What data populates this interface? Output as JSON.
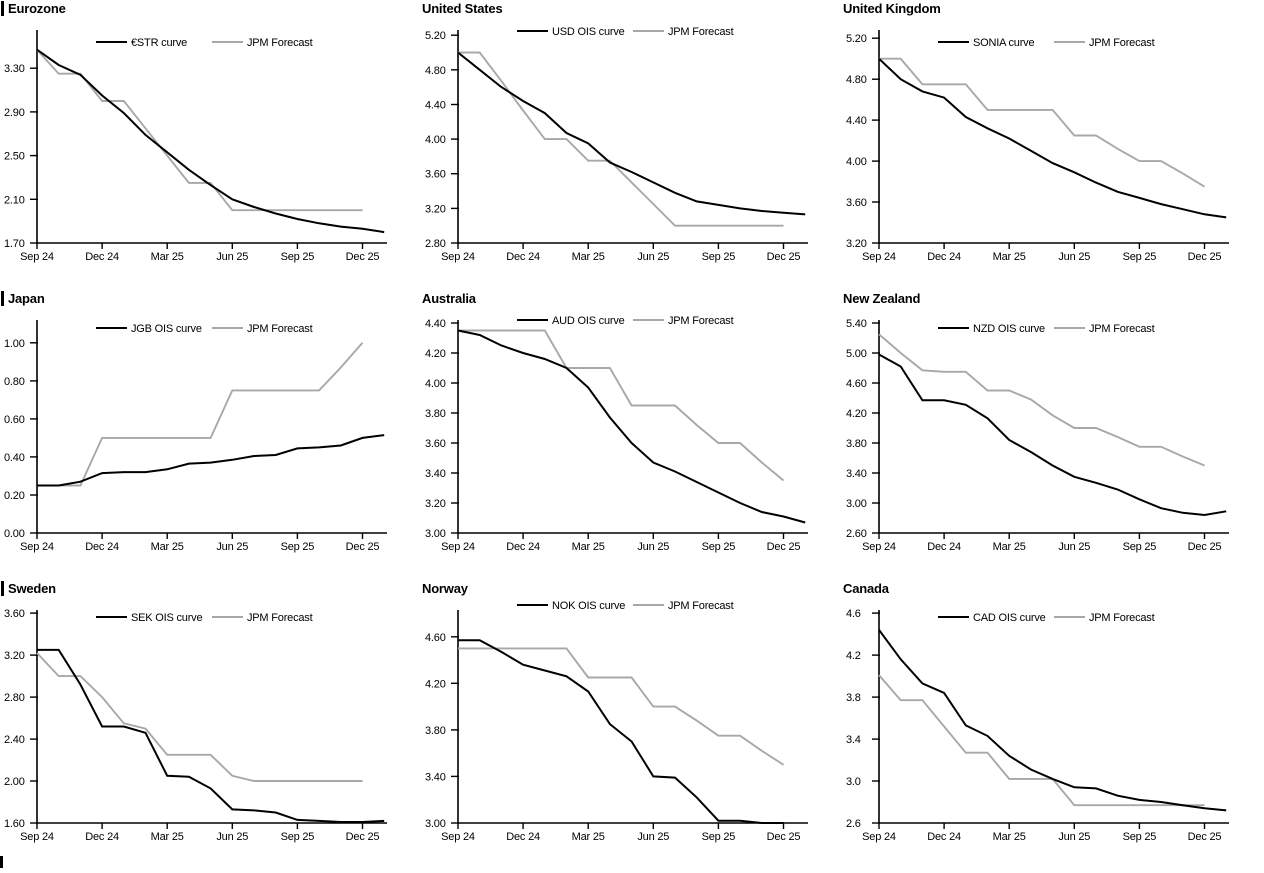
{
  "colors": {
    "curve": "#000000",
    "forecast": "#a8a8a8",
    "text": "#000000"
  },
  "x_axis": {
    "tick_labels": [
      "Sep 24",
      "Dec 24",
      "Mar 25",
      "Jun 25",
      "Sep 25",
      "Dec 25"
    ],
    "tick_positions_months": [
      0,
      3,
      6,
      9,
      12,
      15
    ],
    "x_unit": "months from Sep 2024, monthly points"
  },
  "chart_data": [
    {
      "type": "line",
      "title": "Eurozone",
      "section_bar": true,
      "y_axis": {
        "tick_labels": [
          "1.70",
          "2.10",
          "2.50",
          "2.90",
          "3.30"
        ],
        "tick_values": [
          1.7,
          2.1,
          2.5,
          2.9,
          3.3
        ],
        "range": [
          1.7,
          3.65
        ]
      },
      "series": [
        {
          "name": "€STR curve",
          "role": "curve",
          "y": [
            3.47,
            3.33,
            3.24,
            3.05,
            2.89,
            2.69,
            2.53,
            2.37,
            2.23,
            2.1,
            2.03,
            1.97,
            1.92,
            1.88,
            1.85,
            1.83,
            1.8
          ]
        },
        {
          "name": "JPM Forecast",
          "role": "forecast",
          "y": [
            3.47,
            3.25,
            3.25,
            3.0,
            3.0,
            2.75,
            2.5,
            2.25,
            2.25,
            2.0,
            2.0,
            2.0,
            2.0,
            2.0,
            2.0,
            2.0
          ]
        }
      ]
    },
    {
      "type": "line",
      "title": "United States",
      "section_bar": false,
      "y_axis": {
        "tick_labels": [
          "2.80",
          "3.20",
          "3.60",
          "4.00",
          "4.40",
          "4.80",
          "5.20"
        ],
        "tick_values": [
          2.8,
          3.2,
          3.6,
          4.0,
          4.4,
          4.8,
          5.2
        ],
        "range": [
          2.8,
          5.26
        ]
      },
      "series": [
        {
          "name": "USD OIS curve",
          "role": "curve",
          "y": [
            5.0,
            4.8,
            4.6,
            4.44,
            4.3,
            4.07,
            3.95,
            3.73,
            3.62,
            3.5,
            3.38,
            3.28,
            3.24,
            3.2,
            3.17,
            3.15,
            3.13
          ]
        },
        {
          "name": "JPM Forecast",
          "role": "forecast",
          "y": [
            5.0,
            5.0,
            4.67,
            4.33,
            4.0,
            4.0,
            3.75,
            3.75,
            3.5,
            3.25,
            3.0,
            3.0,
            3.0,
            3.0,
            3.0,
            3.0
          ]
        }
      ]
    },
    {
      "type": "line",
      "title": "United Kingdom",
      "section_bar": false,
      "y_axis": {
        "tick_labels": [
          "3.20",
          "3.60",
          "4.00",
          "4.40",
          "4.80",
          "5.20"
        ],
        "tick_values": [
          3.2,
          3.6,
          4.0,
          4.4,
          4.8,
          5.2
        ],
        "range": [
          3.2,
          5.28
        ]
      },
      "series": [
        {
          "name": "SONIA curve",
          "role": "curve",
          "y": [
            5.0,
            4.8,
            4.68,
            4.62,
            4.43,
            4.32,
            4.22,
            4.1,
            3.98,
            3.89,
            3.79,
            3.7,
            3.64,
            3.58,
            3.53,
            3.48,
            3.45
          ]
        },
        {
          "name": "JPM Forecast",
          "role": "forecast",
          "y": [
            5.0,
            5.0,
            4.75,
            4.75,
            4.75,
            4.5,
            4.5,
            4.5,
            4.5,
            4.25,
            4.25,
            4.12,
            4.0,
            4.0,
            3.88,
            3.75
          ]
        }
      ]
    },
    {
      "type": "line",
      "title": "Japan",
      "section_bar": true,
      "y_axis": {
        "tick_labels": [
          "0.00",
          "0.20",
          "0.40",
          "0.60",
          "0.80",
          "1.00"
        ],
        "tick_values": [
          0.0,
          0.2,
          0.4,
          0.6,
          0.8,
          1.0
        ],
        "range": [
          0.0,
          1.12
        ]
      },
      "series": [
        {
          "name": "JGB OIS curve",
          "role": "curve",
          "y": [
            0.25,
            0.25,
            0.27,
            0.315,
            0.32,
            0.32,
            0.335,
            0.365,
            0.37,
            0.385,
            0.405,
            0.41,
            0.445,
            0.45,
            0.46,
            0.5,
            0.515
          ]
        },
        {
          "name": "JPM Forecast",
          "role": "forecast",
          "y": [
            0.25,
            0.25,
            0.25,
            0.5,
            0.5,
            0.5,
            0.5,
            0.5,
            0.5,
            0.75,
            0.75,
            0.75,
            0.75,
            0.75,
            0.87,
            1.0
          ]
        }
      ]
    },
    {
      "type": "line",
      "title": "Australia",
      "section_bar": false,
      "y_axis": {
        "tick_labels": [
          "3.00",
          "3.20",
          "3.40",
          "3.60",
          "3.80",
          "4.00",
          "4.20",
          "4.40"
        ],
        "tick_values": [
          3.0,
          3.2,
          3.4,
          3.6,
          3.8,
          4.0,
          4.2,
          4.4
        ],
        "range": [
          3.0,
          4.42
        ]
      },
      "series": [
        {
          "name": "AUD OIS curve",
          "role": "curve",
          "y": [
            4.35,
            4.32,
            4.25,
            4.2,
            4.16,
            4.1,
            3.97,
            3.77,
            3.6,
            3.47,
            3.41,
            3.34,
            3.27,
            3.2,
            3.14,
            3.11,
            3.07
          ]
        },
        {
          "name": "JPM Forecast",
          "role": "forecast",
          "y": [
            4.35,
            4.35,
            4.35,
            4.35,
            4.35,
            4.1,
            4.1,
            4.1,
            3.85,
            3.85,
            3.85,
            3.72,
            3.6,
            3.6,
            3.47,
            3.35
          ]
        }
      ]
    },
    {
      "type": "line",
      "title": "New Zealand",
      "section_bar": false,
      "y_axis": {
        "tick_labels": [
          "2.60",
          "3.00",
          "3.40",
          "3.80",
          "4.20",
          "4.60",
          "5.00",
          "5.40"
        ],
        "tick_values": [
          2.6,
          3.0,
          3.4,
          3.8,
          4.2,
          4.6,
          5.0,
          5.4
        ],
        "range": [
          2.6,
          5.44
        ]
      },
      "series": [
        {
          "name": "NZD OIS curve",
          "role": "curve",
          "y": [
            4.98,
            4.82,
            4.37,
            4.37,
            4.31,
            4.13,
            3.84,
            3.68,
            3.5,
            3.35,
            3.27,
            3.18,
            3.05,
            2.93,
            2.87,
            2.84,
            2.89
          ]
        },
        {
          "name": "JPM Forecast",
          "role": "forecast",
          "y": [
            5.25,
            5.0,
            4.77,
            4.75,
            4.75,
            4.5,
            4.5,
            4.38,
            4.17,
            4.0,
            4.0,
            3.88,
            3.75,
            3.75,
            3.62,
            3.5
          ]
        }
      ]
    },
    {
      "type": "line",
      "title": "Sweden",
      "section_bar": true,
      "y_axis": {
        "tick_labels": [
          "1.60",
          "2.00",
          "2.40",
          "2.80",
          "3.20",
          "3.60"
        ],
        "tick_values": [
          1.6,
          2.0,
          2.4,
          2.8,
          3.2,
          3.6
        ],
        "range": [
          1.6,
          3.63
        ]
      },
      "series": [
        {
          "name": "SEK OIS curve",
          "role": "curve",
          "y": [
            3.25,
            3.25,
            2.92,
            2.52,
            2.52,
            2.46,
            2.05,
            2.04,
            1.93,
            1.73,
            1.72,
            1.7,
            1.63,
            1.62,
            1.61,
            1.61,
            1.62
          ]
        },
        {
          "name": "JPM Forecast",
          "role": "forecast",
          "y": [
            3.22,
            3.0,
            3.0,
            2.8,
            2.55,
            2.5,
            2.25,
            2.25,
            2.25,
            2.05,
            2.0,
            2.0,
            2.0,
            2.0,
            2.0,
            2.0
          ]
        }
      ]
    },
    {
      "type": "line",
      "title": "Norway",
      "section_bar": false,
      "y_axis": {
        "tick_labels": [
          "3.00",
          "3.40",
          "3.80",
          "4.20",
          "4.60"
        ],
        "tick_values": [
          3.0,
          3.4,
          3.8,
          4.2,
          4.6
        ],
        "range": [
          3.0,
          4.83
        ]
      },
      "series": [
        {
          "name": "NOK OIS curve",
          "role": "curve",
          "y": [
            4.57,
            4.57,
            4.47,
            4.36,
            4.31,
            4.26,
            4.13,
            3.85,
            3.7,
            3.4,
            3.39,
            3.22,
            3.02,
            3.02,
            3.0,
            3.0
          ]
        },
        {
          "name": "JPM Forecast",
          "role": "forecast",
          "y": [
            4.5,
            4.5,
            4.5,
            4.5,
            4.5,
            4.5,
            4.25,
            4.25,
            4.25,
            4.0,
            4.0,
            3.88,
            3.75,
            3.75,
            3.62,
            3.5
          ]
        }
      ]
    },
    {
      "type": "line",
      "title": "Canada",
      "section_bar": false,
      "y_axis": {
        "tick_labels": [
          "2.6",
          "3.0",
          "3.4",
          "3.8",
          "4.2",
          "4.6"
        ],
        "tick_values": [
          2.6,
          3.0,
          3.4,
          3.8,
          4.2,
          4.6
        ],
        "range": [
          2.6,
          4.63
        ]
      },
      "series": [
        {
          "name": "CAD OIS curve",
          "role": "curve",
          "y": [
            4.44,
            4.16,
            3.93,
            3.84,
            3.53,
            3.43,
            3.24,
            3.11,
            3.02,
            2.94,
            2.93,
            2.86,
            2.82,
            2.8,
            2.77,
            2.74,
            2.72
          ]
        },
        {
          "name": "JPM Forecast",
          "role": "forecast",
          "y": [
            4.01,
            3.77,
            3.77,
            3.52,
            3.27,
            3.27,
            3.02,
            3.02,
            3.02,
            2.77,
            2.77,
            2.77,
            2.77,
            2.77,
            2.77,
            2.77
          ]
        }
      ]
    }
  ]
}
